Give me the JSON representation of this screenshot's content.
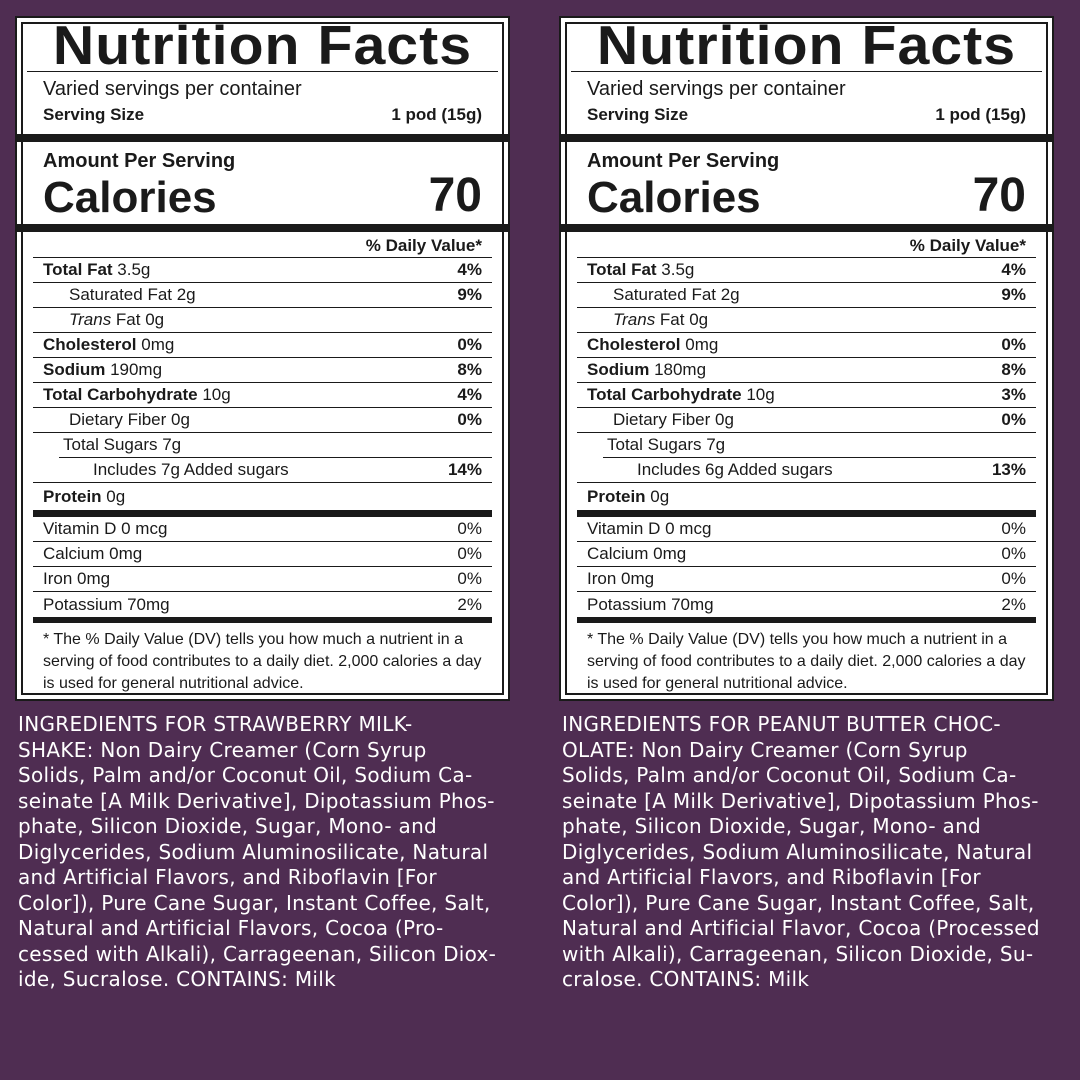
{
  "labels": [
    {
      "title": "Nutrition Facts",
      "servings": "Varied servings per container",
      "serving_size_label": "Serving Size",
      "serving_size_value": "1 pod (15g)",
      "amount_per_serving": "Amount Per Serving",
      "calories_label": "Calories",
      "calories_value": "70",
      "dv_header": "% Daily Value*",
      "nutrients": [
        {
          "name": "Total Fat",
          "amount": " 3.5g",
          "dv": "4%"
        },
        {
          "name": "Saturated Fat 2g",
          "dv": "9%"
        },
        {
          "name": "Trans",
          "amount": " Fat 0g",
          "dv": ""
        },
        {
          "name": "Cholesterol",
          "amount": " 0mg",
          "dv": "0%"
        },
        {
          "name": "Sodium",
          "amount": " 190mg",
          "dv": "8%"
        },
        {
          "name": "Total Carbohydrate",
          "amount": " 10g",
          "dv": "4%"
        },
        {
          "name": "Dietary Fiber 0g",
          "dv": "0%"
        },
        {
          "name": "Total Sugars 7g",
          "dv": ""
        },
        {
          "name": "Includes 7g Added sugars",
          "dv": "14%"
        },
        {
          "name": "Protein",
          "amount": " 0g",
          "dv": ""
        }
      ],
      "vitamins": [
        {
          "name": "Vitamin D 0 mcg",
          "dv": "0%"
        },
        {
          "name": "Calcium 0mg",
          "dv": "0%"
        },
        {
          "name": "Iron 0mg",
          "dv": "0%"
        },
        {
          "name": "Potassium 70mg",
          "dv": "2%"
        }
      ],
      "footnote": "* The % Daily Value (DV) tells you how much a nutrient in a serving of food contributes to a daily diet. 2,000 calories a day is used for general nutritional advice.",
      "ingredients": "INGREDIENTS FOR STRAWBERRY MILK-\nSHAKE: Non Dairy Creamer (Corn Syrup\nSolids, Palm and/or Coconut Oil, Sodium Ca-\nseinate [A Milk Derivative], Dipotassium Phos-\nphate, Silicon Dioxide, Sugar, Mono- and\nDiglycerides, Sodium Aluminosilicate, Natural\nand Artificial Flavors, and Riboflavin [For\nColor]), Pure Cane Sugar, Instant Coffee, Salt,\nNatural and Artificial Flavors, Cocoa (Pro-\ncessed with Alkali), Carrageenan, Silicon Diox-\nide, Sucralose. CONTAINS: Milk"
    },
    {
      "title": "Nutrition Facts",
      "servings": "Varied servings per container",
      "serving_size_label": "Serving Size",
      "serving_size_value": "1 pod (15g)",
      "amount_per_serving": "Amount Per Serving",
      "calories_label": "Calories",
      "calories_value": "70",
      "dv_header": "% Daily Value*",
      "nutrients": [
        {
          "name": "Total Fat",
          "amount": " 3.5g",
          "dv": "4%"
        },
        {
          "name": "Saturated Fat 2g",
          "dv": "9%"
        },
        {
          "name": "Trans",
          "amount": " Fat 0g",
          "dv": ""
        },
        {
          "name": "Cholesterol",
          "amount": " 0mg",
          "dv": "0%"
        },
        {
          "name": "Sodium",
          "amount": " 180mg",
          "dv": "8%"
        },
        {
          "name": "Total Carbohydrate",
          "amount": " 10g",
          "dv": "3%"
        },
        {
          "name": "Dietary Fiber 0g",
          "dv": "0%"
        },
        {
          "name": "Total Sugars 7g",
          "dv": ""
        },
        {
          "name": "Includes 6g Added sugars",
          "dv": "13%"
        },
        {
          "name": "Protein",
          "amount": " 0g",
          "dv": ""
        }
      ],
      "vitamins": [
        {
          "name": "Vitamin D 0 mcg",
          "dv": "0%"
        },
        {
          "name": "Calcium 0mg",
          "dv": "0%"
        },
        {
          "name": "Iron 0mg",
          "dv": "0%"
        },
        {
          "name": "Potassium 70mg",
          "dv": "2%"
        }
      ],
      "footnote": "* The % Daily Value (DV) tells you how much a nutrient in a serving of food contributes to a daily diet. 2,000 calories a day is used for general nutritional advice.",
      "ingredients": "INGREDIENTS FOR PEANUT BUTTER CHOC-\nOLATE: Non Dairy Creamer (Corn Syrup\nSolids, Palm and/or Coconut Oil, Sodium Ca-\nseinate [A Milk Derivative], Dipotassium Phos-\nphate, Silicon Dioxide, Sugar, Mono- and\nDiglycerides, Sodium Aluminosilicate, Natural\nand Artificial Flavors, and Riboflavin [For\nColor]), Pure Cane Sugar, Instant Coffee, Salt,\nNatural and Artificial Flavor, Cocoa (Processed\nwith Alkali), Carrageenan, Silicon Dioxide, Su-\ncralose. CONTAINS: Milk"
    }
  ]
}
